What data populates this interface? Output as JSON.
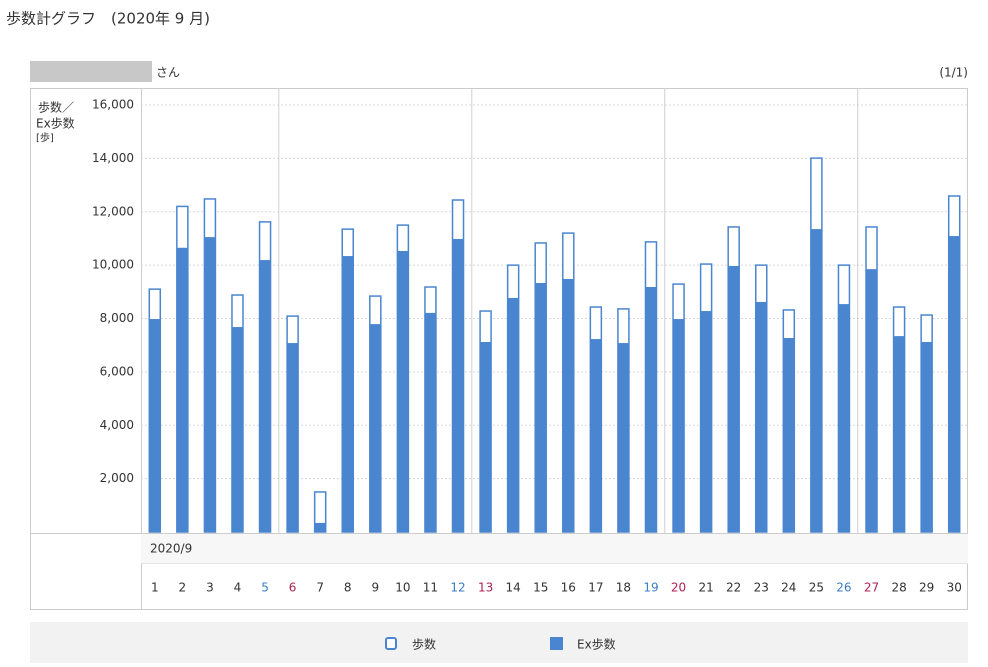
{
  "header": {
    "title": "歩数計グラフ　(2020年 9 月)",
    "user_suffix": "さん",
    "page": "(1/1)"
  },
  "chart_data": {
    "type": "bar",
    "y_label_lines": [
      "歩数／",
      "Ex歩数",
      "[歩]"
    ],
    "x_header": "2020/9",
    "categories": [
      "1",
      "2",
      "3",
      "4",
      "5",
      "6",
      "7",
      "8",
      "9",
      "10",
      "11",
      "12",
      "13",
      "14",
      "15",
      "16",
      "17",
      "18",
      "19",
      "20",
      "21",
      "22",
      "23",
      "24",
      "25",
      "26",
      "27",
      "28",
      "29",
      "30"
    ],
    "category_colors": [
      "#333333",
      "#333333",
      "#333333",
      "#333333",
      "#3b7dc4",
      "#b0224f",
      "#333333",
      "#333333",
      "#333333",
      "#333333",
      "#333333",
      "#3b7dc4",
      "#b0224f",
      "#333333",
      "#333333",
      "#333333",
      "#333333",
      "#333333",
      "#3b7dc4",
      "#b0224f",
      "#333333",
      "#333333",
      "#333333",
      "#333333",
      "#333333",
      "#3b7dc4",
      "#b0224f",
      "#333333",
      "#333333",
      "#333333"
    ],
    "series": [
      {
        "name": "歩数",
        "color": "#4a86d0",
        "values": [
          9100,
          12200,
          12480,
          8880,
          11620,
          8090,
          1500,
          11350,
          8840,
          11500,
          9180,
          12440,
          8280,
          10000,
          10830,
          11200,
          8430,
          8360,
          10870,
          9290,
          10040,
          11430,
          10000,
          8320,
          14010,
          10000,
          11430,
          8430,
          8130,
          12590
        ]
      },
      {
        "name": "Ex歩数",
        "color": "#4a86d0",
        "values": [
          7980,
          10650,
          11050,
          7680,
          10190,
          7080,
          340,
          10340,
          7790,
          10530,
          8210,
          10980,
          7120,
          8770,
          9330,
          9480,
          7230,
          7080,
          9180,
          7980,
          8280,
          9970,
          8620,
          7270,
          11350,
          8540,
          9850,
          7340,
          7120,
          11090
        ]
      }
    ],
    "ylim": [
      0,
      16000
    ],
    "yticks": [
      {
        "value": 2000,
        "label": "2,000"
      },
      {
        "value": 4000,
        "label": "4,000"
      },
      {
        "value": 6000,
        "label": "6,000"
      },
      {
        "value": 8000,
        "label": "8,000"
      },
      {
        "value": 10000,
        "label": "10,000"
      },
      {
        "value": 12000,
        "label": "12,000"
      },
      {
        "value": 14000,
        "label": "14,000"
      },
      {
        "value": 16000,
        "label": "16,000"
      }
    ],
    "grid": true
  }
}
